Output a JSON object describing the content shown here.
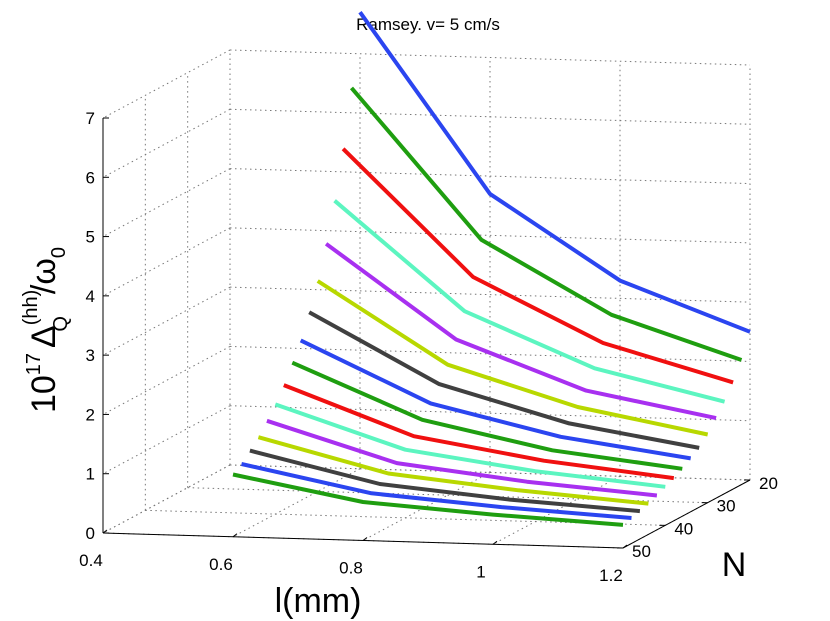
{
  "chart_data": {
    "type": "line3d",
    "title": "Ramsey. v= 5 cm/s",
    "xlabel": "l(mm)",
    "ylabel": "N",
    "zlabel": {
      "prefix": "10",
      "exp": "17",
      "delta": "Δ",
      "sub": "Q",
      "sup": "(hh)",
      "slash": "/ω",
      "omega_sub": "0"
    },
    "x_ticks": [
      "0.4",
      "0.6",
      "0.8",
      "1",
      "1.2"
    ],
    "y_ticks": [
      "20",
      "30",
      "40",
      "50"
    ],
    "z_ticks": [
      "0",
      "1",
      "2",
      "3",
      "4",
      "5",
      "6",
      "7"
    ],
    "xlim": [
      0.4,
      1.2
    ],
    "ylim": [
      20,
      50
    ],
    "zlim": [
      0,
      7
    ],
    "x": [
      0.6,
      0.8,
      1.0,
      1.2
    ],
    "series": [
      {
        "name": "N=20",
        "N": 20,
        "color": "#2b45f0",
        "values": [
          7.7,
          4.7,
          3.3,
          2.5
        ]
      },
      {
        "name": "N=22",
        "N": 22,
        "color": "#1f9e10",
        "values": [
          6.5,
          4.0,
          2.8,
          2.1
        ]
      },
      {
        "name": "N=24",
        "N": 24,
        "color": "#f01010",
        "values": [
          5.55,
          3.45,
          2.4,
          1.8
        ]
      },
      {
        "name": "N=26",
        "N": 26,
        "color": "#5cf5c0",
        "values": [
          4.75,
          2.95,
          2.05,
          1.55
        ]
      },
      {
        "name": "N=28",
        "N": 28,
        "color": "#a830f0",
        "values": [
          4.1,
          2.55,
          1.75,
          1.35
        ]
      },
      {
        "name": "N=30",
        "N": 30,
        "color": "#b8d800",
        "values": [
          3.55,
          2.2,
          1.55,
          1.15
        ]
      },
      {
        "name": "N=32",
        "N": 32,
        "color": "#404040",
        "values": [
          3.1,
          1.95,
          1.35,
          1.0
        ]
      },
      {
        "name": "N=34",
        "N": 34,
        "color": "#2b45f0",
        "values": [
          2.7,
          1.7,
          1.2,
          0.9
        ]
      },
      {
        "name": "N=36",
        "N": 36,
        "color": "#1f9e10",
        "values": [
          2.4,
          1.5,
          1.05,
          0.8
        ]
      },
      {
        "name": "N=38",
        "N": 38,
        "color": "#f01010",
        "values": [
          2.1,
          1.3,
          0.95,
          0.72
        ]
      },
      {
        "name": "N=40",
        "N": 40,
        "color": "#5cf5c0",
        "values": [
          1.85,
          1.15,
          0.85,
          0.65
        ]
      },
      {
        "name": "N=42",
        "N": 42,
        "color": "#a830f0",
        "values": [
          1.65,
          1.0,
          0.75,
          0.58
        ]
      },
      {
        "name": "N=44",
        "N": 44,
        "color": "#b8d800",
        "values": [
          1.45,
          0.9,
          0.68,
          0.52
        ]
      },
      {
        "name": "N=46",
        "N": 46,
        "color": "#404040",
        "values": [
          1.3,
          0.8,
          0.6,
          0.47
        ]
      },
      {
        "name": "N=48",
        "N": 48,
        "color": "#2b45f0",
        "values": [
          1.15,
          0.72,
          0.55,
          0.43
        ]
      },
      {
        "name": "N=50",
        "N": 50,
        "color": "#1f9e10",
        "values": [
          1.05,
          0.65,
          0.5,
          0.39
        ]
      }
    ]
  }
}
